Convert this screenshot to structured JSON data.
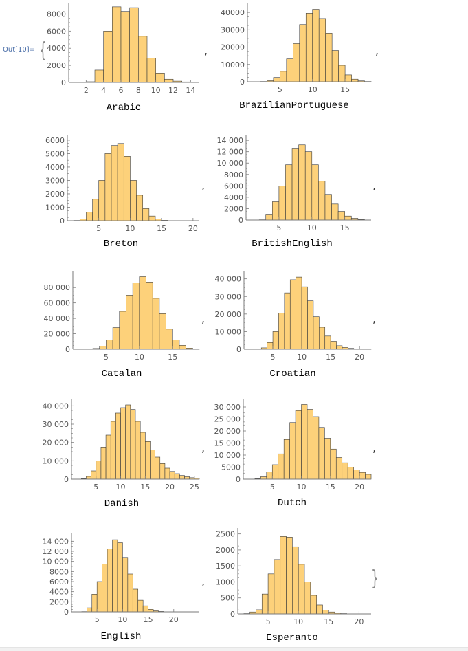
{
  "cell": {
    "out_label": "Out[10]=",
    "open_brace": "{",
    "close_brace": "}",
    "separator": ","
  },
  "style": {
    "bar_fill": "#fdd17a",
    "bar_stroke": "#3a3a3a",
    "axis_color": "#7a7a7a",
    "label_color": "#555555",
    "title_color": "#000000"
  },
  "chart_data": [
    {
      "type": "bar",
      "title": "Arabic",
      "xlabel": "",
      "ylabel": "",
      "xlim": [
        0,
        15
      ],
      "ylim": [
        0,
        9000
      ],
      "xticks": [
        2,
        4,
        6,
        8,
        10,
        12,
        14
      ],
      "yticks": [
        0,
        2000,
        4000,
        6000,
        8000
      ],
      "ytick_labels": [
        "0",
        "2000",
        "4000",
        "6000",
        "8000"
      ],
      "bin_width": 1,
      "bins": [
        {
          "x": 2,
          "y": 80
        },
        {
          "x": 3,
          "y": 1450
        },
        {
          "x": 4,
          "y": 6000
        },
        {
          "x": 5,
          "y": 8850
        },
        {
          "x": 6,
          "y": 8300
        },
        {
          "x": 7,
          "y": 8750
        },
        {
          "x": 8,
          "y": 5400
        },
        {
          "x": 9,
          "y": 2850
        },
        {
          "x": 10,
          "y": 1100
        },
        {
          "x": 11,
          "y": 380
        },
        {
          "x": 12,
          "y": 150
        },
        {
          "x": 13,
          "y": 60
        }
      ]
    },
    {
      "type": "bar",
      "title": "BrazilianPortuguese",
      "xlabel": "",
      "ylabel": "",
      "xlim": [
        0,
        19
      ],
      "ylim": [
        0,
        44000
      ],
      "xticks": [
        5,
        10,
        15
      ],
      "yticks": [
        0,
        10000,
        20000,
        30000,
        40000
      ],
      "ytick_labels": [
        "0",
        "10000",
        "20000",
        "30000",
        "40000"
      ],
      "bin_width": 1,
      "bins": [
        {
          "x": 2,
          "y": 150
        },
        {
          "x": 3,
          "y": 600
        },
        {
          "x": 4,
          "y": 2500
        },
        {
          "x": 5,
          "y": 6000
        },
        {
          "x": 6,
          "y": 13200
        },
        {
          "x": 7,
          "y": 22000
        },
        {
          "x": 8,
          "y": 33000
        },
        {
          "x": 9,
          "y": 39500
        },
        {
          "x": 10,
          "y": 41800
        },
        {
          "x": 11,
          "y": 36500
        },
        {
          "x": 12,
          "y": 28000
        },
        {
          "x": 13,
          "y": 18000
        },
        {
          "x": 14,
          "y": 9500
        },
        {
          "x": 15,
          "y": 4000
        },
        {
          "x": 16,
          "y": 1500
        },
        {
          "x": 17,
          "y": 500
        },
        {
          "x": 18,
          "y": 150
        }
      ]
    },
    {
      "type": "bar",
      "title": "Breton",
      "xlabel": "",
      "ylabel": "",
      "xlim": [
        0,
        21
      ],
      "ylim": [
        0,
        6200
      ],
      "xticks": [
        5,
        10,
        15,
        20
      ],
      "yticks": [
        0,
        1000,
        2000,
        3000,
        4000,
        5000,
        6000
      ],
      "ytick_labels": [
        "0",
        "1000",
        "2000",
        "3000",
        "4000",
        "5000",
        "6000"
      ],
      "bin_width": 1,
      "bins": [
        {
          "x": 1,
          "y": 20
        },
        {
          "x": 2,
          "y": 120
        },
        {
          "x": 3,
          "y": 650
        },
        {
          "x": 4,
          "y": 1600
        },
        {
          "x": 5,
          "y": 3000
        },
        {
          "x": 6,
          "y": 5000
        },
        {
          "x": 7,
          "y": 5600
        },
        {
          "x": 8,
          "y": 5750
        },
        {
          "x": 9,
          "y": 4800
        },
        {
          "x": 10,
          "y": 3000
        },
        {
          "x": 11,
          "y": 1900
        },
        {
          "x": 12,
          "y": 900
        },
        {
          "x": 13,
          "y": 350
        },
        {
          "x": 14,
          "y": 120
        },
        {
          "x": 15,
          "y": 30
        }
      ]
    },
    {
      "type": "bar",
      "title": "BritishEnglish",
      "xlabel": "",
      "ylabel": "",
      "xlim": [
        0,
        19
      ],
      "ylim": [
        0,
        14500
      ],
      "xticks": [
        5,
        10,
        15
      ],
      "yticks": [
        0,
        2000,
        4000,
        6000,
        8000,
        10000,
        12000,
        14000
      ],
      "ytick_labels": [
        "0",
        "2000",
        "4000",
        "6000",
        "8000",
        "10 000",
        "12 000",
        "14 000"
      ],
      "bin_width": 1,
      "bins": [
        {
          "x": 2,
          "y": 50
        },
        {
          "x": 3,
          "y": 900
        },
        {
          "x": 4,
          "y": 3200
        },
        {
          "x": 5,
          "y": 6000
        },
        {
          "x": 6,
          "y": 9700
        },
        {
          "x": 7,
          "y": 12500
        },
        {
          "x": 8,
          "y": 13200
        },
        {
          "x": 9,
          "y": 12000
        },
        {
          "x": 10,
          "y": 9700
        },
        {
          "x": 11,
          "y": 6800
        },
        {
          "x": 12,
          "y": 4500
        },
        {
          "x": 13,
          "y": 2800
        },
        {
          "x": 14,
          "y": 1500
        },
        {
          "x": 15,
          "y": 700
        },
        {
          "x": 16,
          "y": 300
        },
        {
          "x": 17,
          "y": 100
        }
      ]
    },
    {
      "type": "bar",
      "title": "Catalan",
      "xlabel": "",
      "ylabel": "",
      "xlim": [
        0,
        19
      ],
      "ylim": [
        0,
        98000
      ],
      "xticks": [
        5,
        10,
        15
      ],
      "yticks": [
        0,
        20000,
        40000,
        60000,
        80000
      ],
      "ytick_labels": [
        "0",
        "20 000",
        "40 000",
        "60 000",
        "80 000"
      ],
      "bin_width": 1,
      "bins": [
        {
          "x": 2,
          "y": 200
        },
        {
          "x": 3,
          "y": 1000
        },
        {
          "x": 4,
          "y": 4000
        },
        {
          "x": 5,
          "y": 12000
        },
        {
          "x": 6,
          "y": 28000
        },
        {
          "x": 7,
          "y": 49000
        },
        {
          "x": 8,
          "y": 70000
        },
        {
          "x": 9,
          "y": 86000
        },
        {
          "x": 10,
          "y": 94000
        },
        {
          "x": 11,
          "y": 87000
        },
        {
          "x": 12,
          "y": 66000
        },
        {
          "x": 13,
          "y": 46000
        },
        {
          "x": 14,
          "y": 26000
        },
        {
          "x": 15,
          "y": 12000
        },
        {
          "x": 16,
          "y": 5000
        },
        {
          "x": 17,
          "y": 1500
        },
        {
          "x": 18,
          "y": 400
        }
      ]
    },
    {
      "type": "bar",
      "title": "Croatian",
      "xlabel": "",
      "ylabel": "",
      "xlim": [
        0,
        22
      ],
      "ylim": [
        0,
        43000
      ],
      "xticks": [
        5,
        10,
        15,
        20
      ],
      "yticks": [
        0,
        10000,
        20000,
        30000,
        40000
      ],
      "ytick_labels": [
        "0",
        "10 000",
        "20 000",
        "30 000",
        "40 000"
      ],
      "bin_width": 1,
      "bins": [
        {
          "x": 2,
          "y": 100
        },
        {
          "x": 3,
          "y": 800
        },
        {
          "x": 4,
          "y": 3800
        },
        {
          "x": 5,
          "y": 10000
        },
        {
          "x": 6,
          "y": 20500
        },
        {
          "x": 7,
          "y": 32000
        },
        {
          "x": 8,
          "y": 39500
        },
        {
          "x": 9,
          "y": 41000
        },
        {
          "x": 10,
          "y": 35500
        },
        {
          "x": 11,
          "y": 27500
        },
        {
          "x": 12,
          "y": 18500
        },
        {
          "x": 13,
          "y": 12500
        },
        {
          "x": 14,
          "y": 7500
        },
        {
          "x": 15,
          "y": 4500
        },
        {
          "x": 16,
          "y": 2000
        },
        {
          "x": 17,
          "y": 1000
        },
        {
          "x": 18,
          "y": 500
        },
        {
          "x": 19,
          "y": 250
        },
        {
          "x": 20,
          "y": 100
        },
        {
          "x": 21,
          "y": 50
        }
      ]
    },
    {
      "type": "bar",
      "title": "Danish",
      "xlabel": "",
      "ylabel": "",
      "xlim": [
        0,
        26
      ],
      "ylim": [
        0,
        42000
      ],
      "xticks": [
        5,
        10,
        15,
        20,
        25
      ],
      "yticks": [
        0,
        10000,
        20000,
        30000,
        40000
      ],
      "ytick_labels": [
        "0",
        "10 000",
        "20 000",
        "30 000",
        "40 000"
      ],
      "bin_width": 1,
      "bins": [
        {
          "x": 1,
          "y": 50
        },
        {
          "x": 2,
          "y": 300
        },
        {
          "x": 3,
          "y": 1500
        },
        {
          "x": 4,
          "y": 4500
        },
        {
          "x": 5,
          "y": 10000
        },
        {
          "x": 6,
          "y": 17500
        },
        {
          "x": 7,
          "y": 24000
        },
        {
          "x": 8,
          "y": 31500
        },
        {
          "x": 9,
          "y": 36000
        },
        {
          "x": 10,
          "y": 39000
        },
        {
          "x": 11,
          "y": 40500
        },
        {
          "x": 12,
          "y": 38000
        },
        {
          "x": 13,
          "y": 31500
        },
        {
          "x": 14,
          "y": 25500
        },
        {
          "x": 15,
          "y": 20500
        },
        {
          "x": 16,
          "y": 16000
        },
        {
          "x": 17,
          "y": 12000
        },
        {
          "x": 18,
          "y": 8500
        },
        {
          "x": 19,
          "y": 6000
        },
        {
          "x": 20,
          "y": 4200
        },
        {
          "x": 21,
          "y": 3000
        },
        {
          "x": 22,
          "y": 2000
        },
        {
          "x": 23,
          "y": 1300
        },
        {
          "x": 24,
          "y": 800
        },
        {
          "x": 25,
          "y": 500
        }
      ]
    },
    {
      "type": "bar",
      "title": "Dutch",
      "xlabel": "",
      "ylabel": "",
      "xlim": [
        0,
        22
      ],
      "ylim": [
        0,
        32000
      ],
      "xticks": [
        5,
        10,
        15,
        20
      ],
      "yticks": [
        0,
        5000,
        10000,
        15000,
        20000,
        25000,
        30000
      ],
      "ytick_labels": [
        "0",
        "5000",
        "10 000",
        "15 000",
        "20 000",
        "25 000",
        "30 000"
      ],
      "bin_width": 1,
      "bins": [
        {
          "x": 2,
          "y": 200
        },
        {
          "x": 3,
          "y": 1000
        },
        {
          "x": 4,
          "y": 3000
        },
        {
          "x": 5,
          "y": 6000
        },
        {
          "x": 6,
          "y": 10500
        },
        {
          "x": 7,
          "y": 16500
        },
        {
          "x": 8,
          "y": 23500
        },
        {
          "x": 9,
          "y": 28500
        },
        {
          "x": 10,
          "y": 31000
        },
        {
          "x": 11,
          "y": 29000
        },
        {
          "x": 12,
          "y": 26000
        },
        {
          "x": 13,
          "y": 21500
        },
        {
          "x": 14,
          "y": 17000
        },
        {
          "x": 15,
          "y": 12500
        },
        {
          "x": 16,
          "y": 9000
        },
        {
          "x": 17,
          "y": 6800
        },
        {
          "x": 18,
          "y": 5000
        },
        {
          "x": 19,
          "y": 3800
        },
        {
          "x": 20,
          "y": 2800
        },
        {
          "x": 21,
          "y": 2000
        }
      ]
    },
    {
      "type": "bar",
      "title": "English",
      "xlabel": "",
      "ylabel": "",
      "xlim": [
        0,
        25
      ],
      "ylim": [
        0,
        15000
      ],
      "xticks": [
        5,
        10,
        15,
        20
      ],
      "yticks": [
        0,
        2000,
        4000,
        6000,
        8000,
        10000,
        12000,
        14000
      ],
      "ytick_labels": [
        "0",
        "2000",
        "4000",
        "6000",
        "8000",
        "10 000",
        "12 000",
        "14 000"
      ],
      "bin_width": 1,
      "bins": [
        {
          "x": 2,
          "y": 50
        },
        {
          "x": 3,
          "y": 800
        },
        {
          "x": 4,
          "y": 3500
        },
        {
          "x": 5,
          "y": 6000
        },
        {
          "x": 6,
          "y": 9500
        },
        {
          "x": 7,
          "y": 12500
        },
        {
          "x": 8,
          "y": 14300
        },
        {
          "x": 9,
          "y": 13700
        },
        {
          "x": 10,
          "y": 10800
        },
        {
          "x": 11,
          "y": 7500
        },
        {
          "x": 12,
          "y": 4500
        },
        {
          "x": 13,
          "y": 2300
        },
        {
          "x": 14,
          "y": 1200
        },
        {
          "x": 15,
          "y": 500
        },
        {
          "x": 16,
          "y": 200
        },
        {
          "x": 17,
          "y": 80
        }
      ]
    },
    {
      "type": "bar",
      "title": "Esperanto",
      "xlabel": "",
      "ylabel": "",
      "xlim": [
        0,
        22
      ],
      "ylim": [
        0,
        2600
      ],
      "xticks": [
        5,
        10,
        15,
        20
      ],
      "yticks": [
        0,
        500,
        1000,
        1500,
        2000,
        2500
      ],
      "ytick_labels": [
        "0",
        "500",
        "1000",
        "1500",
        "2000",
        "2500"
      ],
      "bin_width": 1,
      "bins": [
        {
          "x": 1,
          "y": 10
        },
        {
          "x": 2,
          "y": 60
        },
        {
          "x": 3,
          "y": 130
        },
        {
          "x": 4,
          "y": 620
        },
        {
          "x": 5,
          "y": 1250
        },
        {
          "x": 6,
          "y": 1700
        },
        {
          "x": 7,
          "y": 2420
        },
        {
          "x": 8,
          "y": 2400
        },
        {
          "x": 9,
          "y": 2100
        },
        {
          "x": 10,
          "y": 1550
        },
        {
          "x": 11,
          "y": 1000
        },
        {
          "x": 12,
          "y": 580
        },
        {
          "x": 13,
          "y": 280
        },
        {
          "x": 14,
          "y": 120
        },
        {
          "x": 15,
          "y": 60
        },
        {
          "x": 16,
          "y": 25
        },
        {
          "x": 17,
          "y": 10
        }
      ]
    }
  ]
}
